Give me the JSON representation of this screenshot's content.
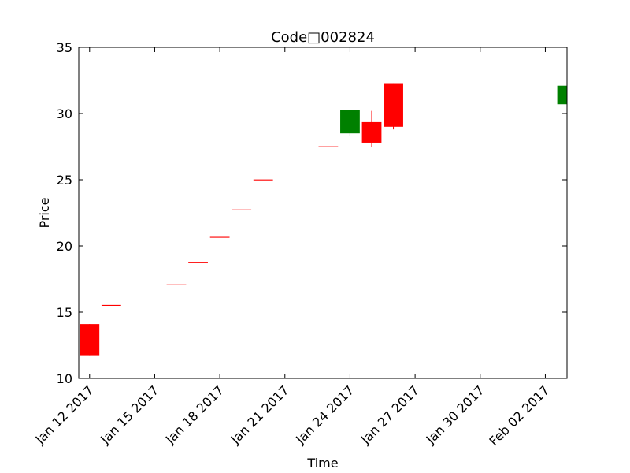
{
  "chart_data": {
    "type": "candlestick",
    "title": "Code□002824",
    "xlabel": "Time",
    "ylabel": "Price",
    "xlim": [
      "2017-01-11T12:00",
      "2017-02-03"
    ],
    "ylim": [
      10,
      35
    ],
    "yticks": [
      10,
      15,
      20,
      25,
      30,
      35
    ],
    "xticks": [
      {
        "date": "2017-01-12",
        "label": "Jan 12 2017"
      },
      {
        "date": "2017-01-15",
        "label": "Jan 15 2017"
      },
      {
        "date": "2017-01-18",
        "label": "Jan 18 2017"
      },
      {
        "date": "2017-01-21",
        "label": "Jan 21 2017"
      },
      {
        "date": "2017-01-24",
        "label": "Jan 24 2017"
      },
      {
        "date": "2017-01-27",
        "label": "Jan 27 2017"
      },
      {
        "date": "2017-01-30",
        "label": "Jan 30 2017"
      },
      {
        "date": "2017-02-02",
        "label": "Feb 02 2017"
      }
    ],
    "up_color": "#ff0000",
    "down_color": "#008000",
    "grid": false,
    "candles": [
      {
        "date": "2017-01-12",
        "open": 11.75,
        "high": 14.1,
        "low": 11.75,
        "close": 14.1
      },
      {
        "date": "2017-01-13",
        "open": 15.51,
        "high": 15.51,
        "low": 15.51,
        "close": 15.51
      },
      {
        "date": "2017-01-16",
        "open": 17.06,
        "high": 17.06,
        "low": 17.06,
        "close": 17.06
      },
      {
        "date": "2017-01-17",
        "open": 18.77,
        "high": 18.77,
        "low": 18.77,
        "close": 18.77
      },
      {
        "date": "2017-01-18",
        "open": 20.65,
        "high": 20.65,
        "low": 20.65,
        "close": 20.65
      },
      {
        "date": "2017-01-19",
        "open": 22.72,
        "high": 22.72,
        "low": 22.72,
        "close": 22.72
      },
      {
        "date": "2017-01-20",
        "open": 24.99,
        "high": 24.99,
        "low": 24.99,
        "close": 24.99
      },
      {
        "date": "2017-01-23",
        "open": 27.49,
        "high": 27.49,
        "low": 27.49,
        "close": 27.49
      },
      {
        "date": "2017-01-24",
        "open": 30.24,
        "high": 30.24,
        "low": 28.3,
        "close": 28.5
      },
      {
        "date": "2017-01-25",
        "open": 27.8,
        "high": 30.2,
        "low": 27.5,
        "close": 29.35
      },
      {
        "date": "2017-01-26",
        "open": 29.0,
        "high": 32.29,
        "low": 28.8,
        "close": 32.29
      },
      {
        "date": "2017-02-03",
        "open": 32.1,
        "high": 32.2,
        "low": 29.8,
        "close": 30.7
      }
    ]
  }
}
